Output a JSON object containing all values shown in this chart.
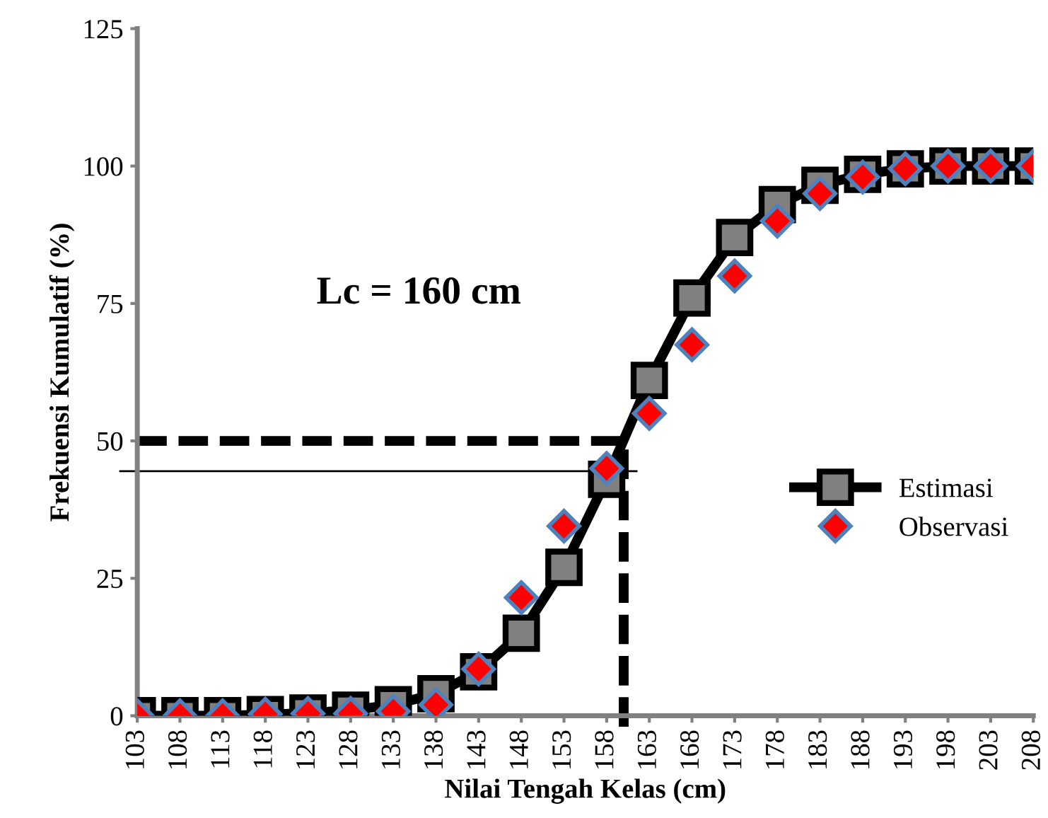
{
  "chart_data": {
    "type": "line",
    "xlabel": "Nilai Tengah Kelas (cm)",
    "ylabel": "Frekuensi Kumulatif (%)",
    "x": [
      103,
      108,
      113,
      118,
      123,
      128,
      133,
      138,
      143,
      148,
      153,
      158,
      163,
      168,
      173,
      178,
      183,
      188,
      193,
      198,
      203,
      208
    ],
    "series": [
      {
        "name": "Estimasi",
        "color": "#808080",
        "marker": "square",
        "line_style": "solid",
        "values": [
          0,
          0,
          0,
          0.2,
          0.5,
          1,
          2,
          4,
          8,
          15,
          27,
          43,
          61,
          76,
          87,
          93,
          96.5,
          98.5,
          99.5,
          100,
          100,
          100
        ]
      },
      {
        "name": "Observasi",
        "type": "scatter",
        "color": "#ff0000",
        "marker": "diamond",
        "values": [
          0,
          0,
          0,
          0.3,
          0.4,
          0.4,
          0.8,
          2,
          8.5,
          21.5,
          34.5,
          45,
          55,
          67.5,
          80,
          90,
          95,
          98,
          99.5,
          100,
          100,
          100
        ]
      }
    ],
    "xlim": [
      103,
      208
    ],
    "xticks": [
      103,
      108,
      113,
      118,
      123,
      128,
      133,
      138,
      143,
      148,
      153,
      158,
      163,
      168,
      173,
      178,
      183,
      188,
      193,
      198,
      203,
      208
    ],
    "ylim": [
      0,
      125
    ],
    "yticks": [
      0,
      25,
      50,
      75,
      100,
      125
    ],
    "ref_lines": [
      {
        "axis": "y",
        "value": 50,
        "line_style": "dashed",
        "color": "#000000"
      },
      {
        "axis": "y",
        "value": 44.5,
        "line_style": "solid",
        "color": "#000000"
      },
      {
        "axis": "x",
        "value": 160,
        "line_style": "dashed",
        "color": "#000000"
      }
    ],
    "annotations": [
      "Lc = 160 cm"
    ],
    "grid": false,
    "legend": "right"
  }
}
